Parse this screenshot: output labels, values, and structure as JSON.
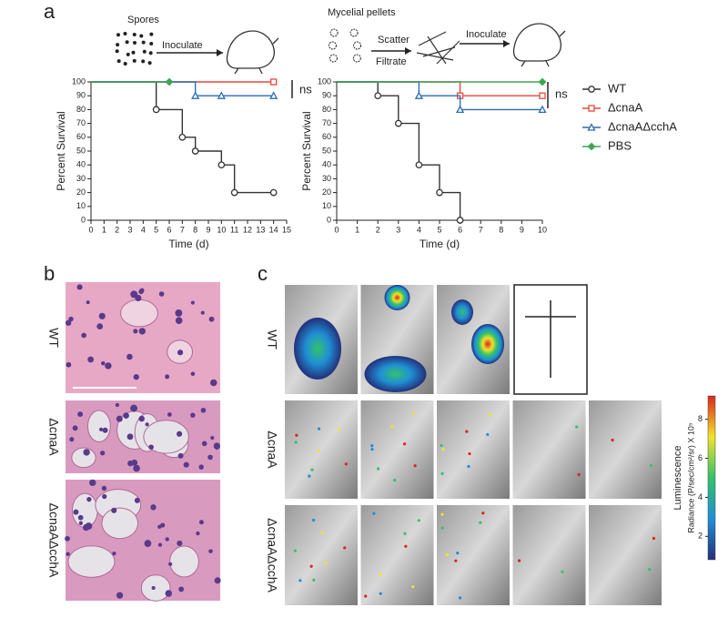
{
  "panels": {
    "a": "a",
    "b": "b",
    "c": "c"
  },
  "schematic": {
    "left": {
      "label": "Spores",
      "arrow": "Inoculate"
    },
    "right": {
      "label": "Mycelial pellets",
      "steps": [
        "Scatter",
        "Filtrate"
      ],
      "arrow": "Inoculate"
    }
  },
  "chart_data": [
    {
      "type": "line",
      "step": true,
      "xlabel": "Time (d)",
      "ylabel": "Percent Survival",
      "xlim": [
        0,
        15
      ],
      "xticks": [
        0,
        1,
        2,
        3,
        4,
        5,
        6,
        7,
        8,
        9,
        10,
        11,
        12,
        13,
        14,
        15
      ],
      "ylim": [
        0,
        100
      ],
      "yticks": [
        0,
        10,
        20,
        30,
        40,
        50,
        60,
        70,
        80,
        90,
        100
      ],
      "annotation": "ns",
      "series": [
        {
          "name": "WT",
          "color": "#333333",
          "marker": "circle",
          "x": [
            0,
            5,
            7,
            8,
            10,
            11,
            14
          ],
          "values": [
            100,
            80,
            60,
            50,
            40,
            20,
            20
          ]
        },
        {
          "name": "ΔcnaA",
          "color": "#e8453c",
          "marker": "square",
          "x": [
            0,
            14
          ],
          "values": [
            100,
            100
          ]
        },
        {
          "name": "ΔcnaAΔcchA",
          "color": "#2b6cb0",
          "marker": "triangle",
          "x": [
            0,
            8,
            10,
            14
          ],
          "values": [
            100,
            90,
            90,
            90
          ]
        },
        {
          "name": "PBS",
          "color": "#3aa655",
          "marker": "diamond",
          "x": [
            0,
            6
          ],
          "values": [
            100,
            100
          ]
        }
      ]
    },
    {
      "type": "line",
      "step": true,
      "xlabel": "Time (d)",
      "ylabel": "Percent Survival",
      "xlim": [
        0,
        10
      ],
      "xticks": [
        0,
        1,
        2,
        3,
        4,
        5,
        6,
        7,
        8,
        9,
        10
      ],
      "ylim": [
        0,
        100
      ],
      "yticks": [
        0,
        10,
        20,
        30,
        40,
        50,
        60,
        70,
        80,
        90,
        100
      ],
      "annotation": "ns",
      "series": [
        {
          "color": "#333333",
          "marker": "circle",
          "x": [
            0,
            2,
            3,
            4,
            5,
            6
          ],
          "values": [
            100,
            90,
            70,
            40,
            20,
            0
          ]
        },
        {
          "color": "#e8453c",
          "marker": "square",
          "x": [
            0,
            6,
            10
          ],
          "values": [
            100,
            90,
            90
          ]
        },
        {
          "color": "#2b6cb0",
          "marker": "triangle",
          "x": [
            0,
            4,
            6,
            10
          ],
          "values": [
            100,
            90,
            80,
            80
          ]
        },
        {
          "color": "#3aa655",
          "marker": "diamond",
          "x": [
            0,
            10
          ],
          "values": [
            100,
            100
          ]
        }
      ]
    }
  ],
  "histology": {
    "rows": [
      "WT",
      "ΔcnaA",
      "ΔcnaAΔcchA"
    ]
  },
  "imaging": {
    "rows": [
      "WT",
      "ΔcnaA",
      "ΔcnaAΔcchA"
    ],
    "colorbar": {
      "title": "Luminescence",
      "label": "Radiance (P/sec/cm²/sr) X 10⁵",
      "lim": [
        0.8,
        9.2
      ],
      "ticks": [
        2,
        4,
        6,
        8
      ]
    }
  }
}
